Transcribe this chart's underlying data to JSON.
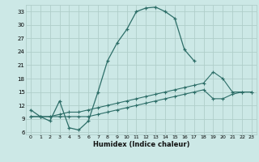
{
  "xlabel": "Humidex (Indice chaleur)",
  "background_color": "#cce8e6",
  "grid_color": "#b0ceca",
  "line_color": "#2d6e68",
  "xlim": [
    -0.5,
    23.5
  ],
  "ylim": [
    5.5,
    34.5
  ],
  "yticks": [
    6,
    9,
    12,
    15,
    18,
    21,
    24,
    27,
    30,
    33
  ],
  "xticks": [
    0,
    1,
    2,
    3,
    4,
    5,
    6,
    7,
    8,
    9,
    10,
    11,
    12,
    13,
    14,
    15,
    16,
    17,
    18,
    19,
    20,
    21,
    22,
    23
  ],
  "curve1_x": [
    0,
    1,
    2,
    3,
    4,
    5,
    6,
    7,
    8,
    9,
    10,
    11,
    12,
    13,
    14,
    15,
    16,
    17
  ],
  "curve1_y": [
    11.0,
    9.5,
    8.5,
    13.0,
    7.0,
    6.5,
    8.5,
    15.0,
    22.0,
    26.0,
    29.0,
    33.0,
    33.8,
    34.0,
    33.0,
    31.5,
    24.5,
    22.0
  ],
  "curve2_x": [
    0,
    1,
    2,
    3,
    4,
    5,
    6,
    7,
    8,
    9,
    10,
    11,
    12,
    13,
    14,
    15,
    16,
    17,
    18,
    19,
    20,
    21,
    22,
    23
  ],
  "curve2_y": [
    9.5,
    9.5,
    9.5,
    10.0,
    10.5,
    10.5,
    11.0,
    11.5,
    12.0,
    12.5,
    13.0,
    13.5,
    14.0,
    14.5,
    15.0,
    15.5,
    16.0,
    16.5,
    17.0,
    19.5,
    18.0,
    15.0,
    15.0,
    15.0
  ],
  "curve3_x": [
    0,
    1,
    2,
    3,
    4,
    5,
    6,
    7,
    8,
    9,
    10,
    11,
    12,
    13,
    14,
    15,
    16,
    17,
    18,
    19,
    20,
    21,
    22,
    23
  ],
  "curve3_y": [
    9.5,
    9.5,
    9.5,
    9.5,
    9.5,
    9.5,
    9.5,
    10.0,
    10.5,
    11.0,
    11.5,
    12.0,
    12.5,
    13.0,
    13.5,
    14.0,
    14.5,
    15.0,
    15.5,
    13.5,
    13.5,
    14.5,
    15.0,
    15.0
  ]
}
